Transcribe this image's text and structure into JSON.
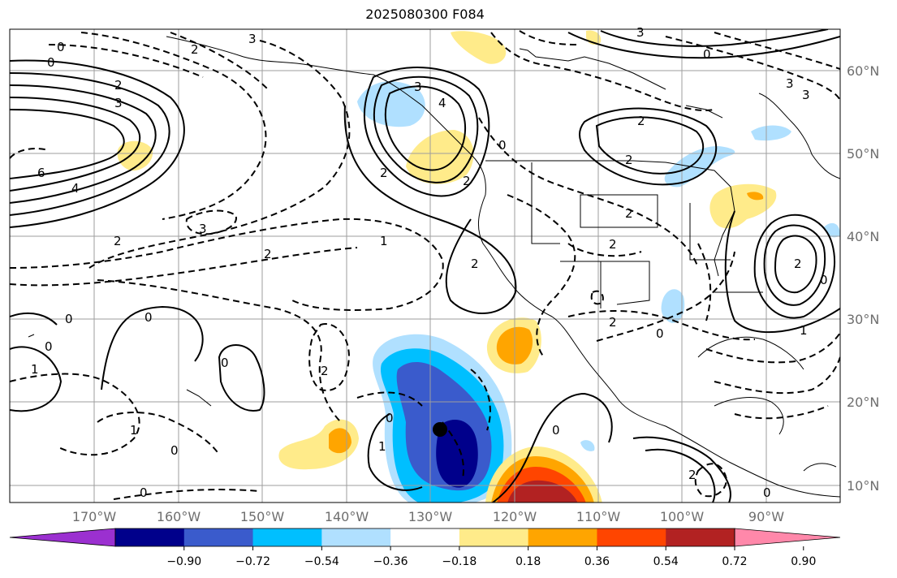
{
  "title": "2025080300 F084",
  "lat_labels": [
    "60°N",
    "50°N",
    "40°N",
    "30°N",
    "20°N",
    "10°N"
  ],
  "lon_labels": [
    "170°W",
    "160°W",
    "150°W",
    "140°W",
    "130°W",
    "120°W",
    "110°W",
    "100°W",
    "90°W"
  ],
  "colorbar": {
    "tick_labels": [
      "−0.90",
      "−0.72",
      "−0.54",
      "−0.36",
      "−0.18",
      "0.18",
      "0.36",
      "0.54",
      "0.72",
      "0.90"
    ],
    "colors": [
      "#9b30d0",
      "#00008b",
      "#3a5bcc",
      "#00bfff",
      "#b0e0ff",
      "#ffffff",
      "#ffeb8a",
      "#ffa500",
      "#ff4500",
      "#b22222",
      "#ff88aa"
    ]
  },
  "contour_labels": [
    "0",
    "3",
    "2",
    "0",
    "2",
    "3",
    "6",
    "4",
    "2",
    "3",
    "2",
    "3",
    "4",
    "0",
    "2",
    "2",
    "2",
    "3",
    "0",
    "3",
    "3",
    "1",
    "2",
    "2",
    "2",
    "2",
    "2",
    "0",
    "0",
    "0",
    "1",
    "0",
    "2",
    "1",
    "0",
    "0",
    "1",
    "0",
    "0",
    "2",
    "0",
    "2",
    "1",
    "0",
    "0"
  ],
  "colors": {
    "land": "#ffffff",
    "grid": "#9e9e9e",
    "marker": "#000000"
  }
}
